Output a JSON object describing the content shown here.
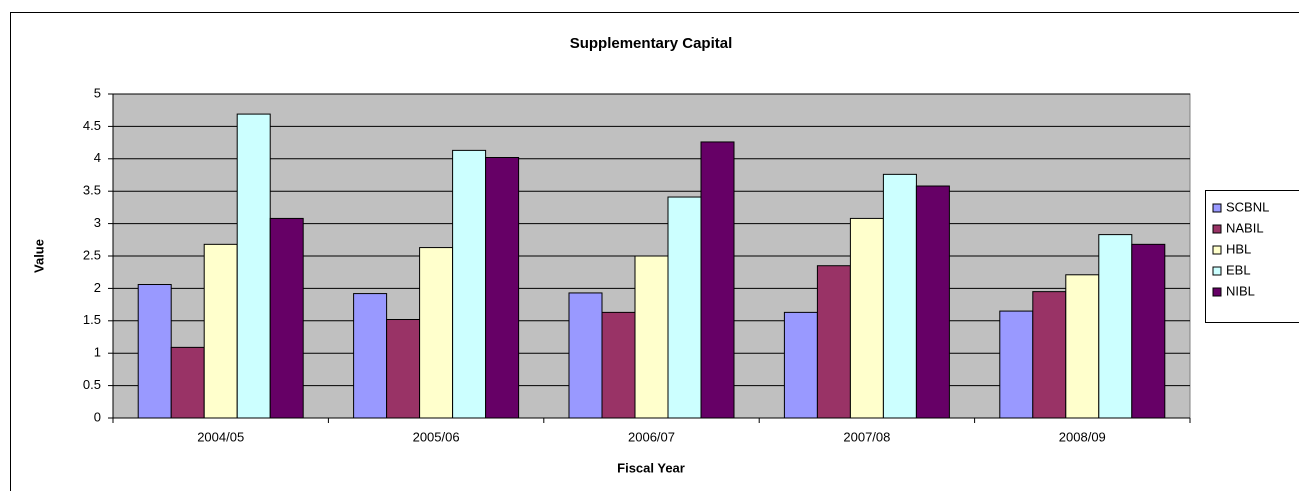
{
  "chart_data": {
    "type": "bar",
    "title": "Supplementary Capital",
    "x_label": "Fiscal Year",
    "y_label": "Value",
    "categories": [
      "2004/05",
      "2005/06",
      "2006/07",
      "2007/08",
      "2008/09"
    ],
    "series": [
      {
        "name": "SCBNL",
        "color": "#9999ff",
        "values": [
          2.06,
          1.92,
          1.93,
          1.63,
          1.65
        ]
      },
      {
        "name": "NABIL",
        "color": "#993366",
        "values": [
          1.09,
          1.52,
          1.63,
          2.35,
          1.95
        ]
      },
      {
        "name": "HBL",
        "color": "#ffffcc",
        "values": [
          2.68,
          2.63,
          2.5,
          3.08,
          2.21
        ]
      },
      {
        "name": "EBL",
        "color": "#ccffff",
        "values": [
          4.69,
          4.13,
          3.41,
          3.76,
          2.83
        ]
      },
      {
        "name": "NIBL",
        "color": "#660066",
        "values": [
          3.08,
          4.02,
          4.26,
          3.58,
          2.68
        ]
      }
    ],
    "ylim": [
      0,
      5
    ],
    "yticks": [
      0,
      0.5,
      1,
      1.5,
      2,
      2.5,
      3,
      3.5,
      4,
      4.5,
      5
    ],
    "grid": true,
    "legend": "right"
  }
}
